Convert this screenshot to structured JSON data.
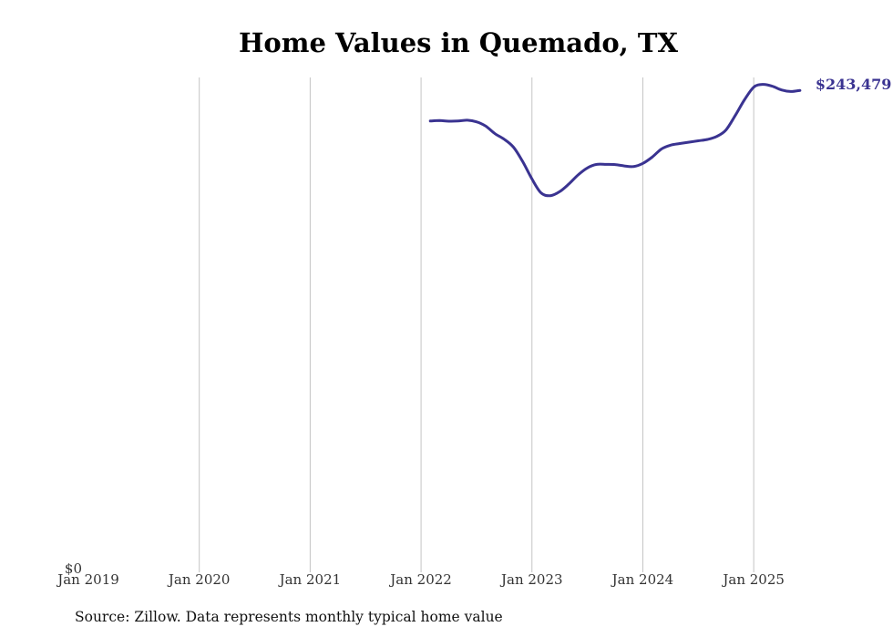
{
  "chart_data": {
    "type": "line",
    "title": "Home Values in Quemado, TX",
    "x_tick_labels": [
      "Jan 2019",
      "Jan 2020",
      "Jan 2021",
      "Jan 2022",
      "Jan 2023",
      "Jan 2024",
      "Jan 2025"
    ],
    "y_tick_label": "$0",
    "ylim": [
      0,
      250000
    ],
    "xlim": [
      "2019-01",
      "2025-07"
    ],
    "grid": "vertical gridlines at year ticks",
    "line_color": "#3a3391",
    "end_label": "$243,479",
    "series": [
      {
        "x": [
          "2022-02",
          "2022-03",
          "2022-04",
          "2022-05",
          "2022-06",
          "2022-07",
          "2022-08",
          "2022-09",
          "2022-10",
          "2022-11",
          "2022-12",
          "2023-01",
          "2023-02",
          "2023-03",
          "2023-04",
          "2023-05",
          "2023-06",
          "2023-07",
          "2023-08",
          "2023-09",
          "2023-10",
          "2023-11",
          "2023-12",
          "2024-01",
          "2024-02",
          "2024-03",
          "2024-04",
          "2024-05",
          "2024-06",
          "2024-07",
          "2024-08",
          "2024-09",
          "2024-10",
          "2024-11",
          "2024-12",
          "2025-01",
          "2025-02",
          "2025-03",
          "2025-04",
          "2025-05",
          "2025-06"
        ],
        "y": [
          228000,
          228200,
          227900,
          228000,
          228400,
          227600,
          225400,
          221600,
          218800,
          214800,
          207500,
          198700,
          191600,
          190300,
          192300,
          196200,
          200800,
          204300,
          206100,
          206100,
          206000,
          205300,
          205000,
          206600,
          209700,
          213800,
          215800,
          216600,
          217300,
          218000,
          218700,
          220200,
          223500,
          230800,
          238700,
          245100,
          246500,
          245600,
          243700,
          242900,
          243479
        ]
      }
    ]
  },
  "source_note": "Source: Zillow. Data represents monthly typical home value"
}
